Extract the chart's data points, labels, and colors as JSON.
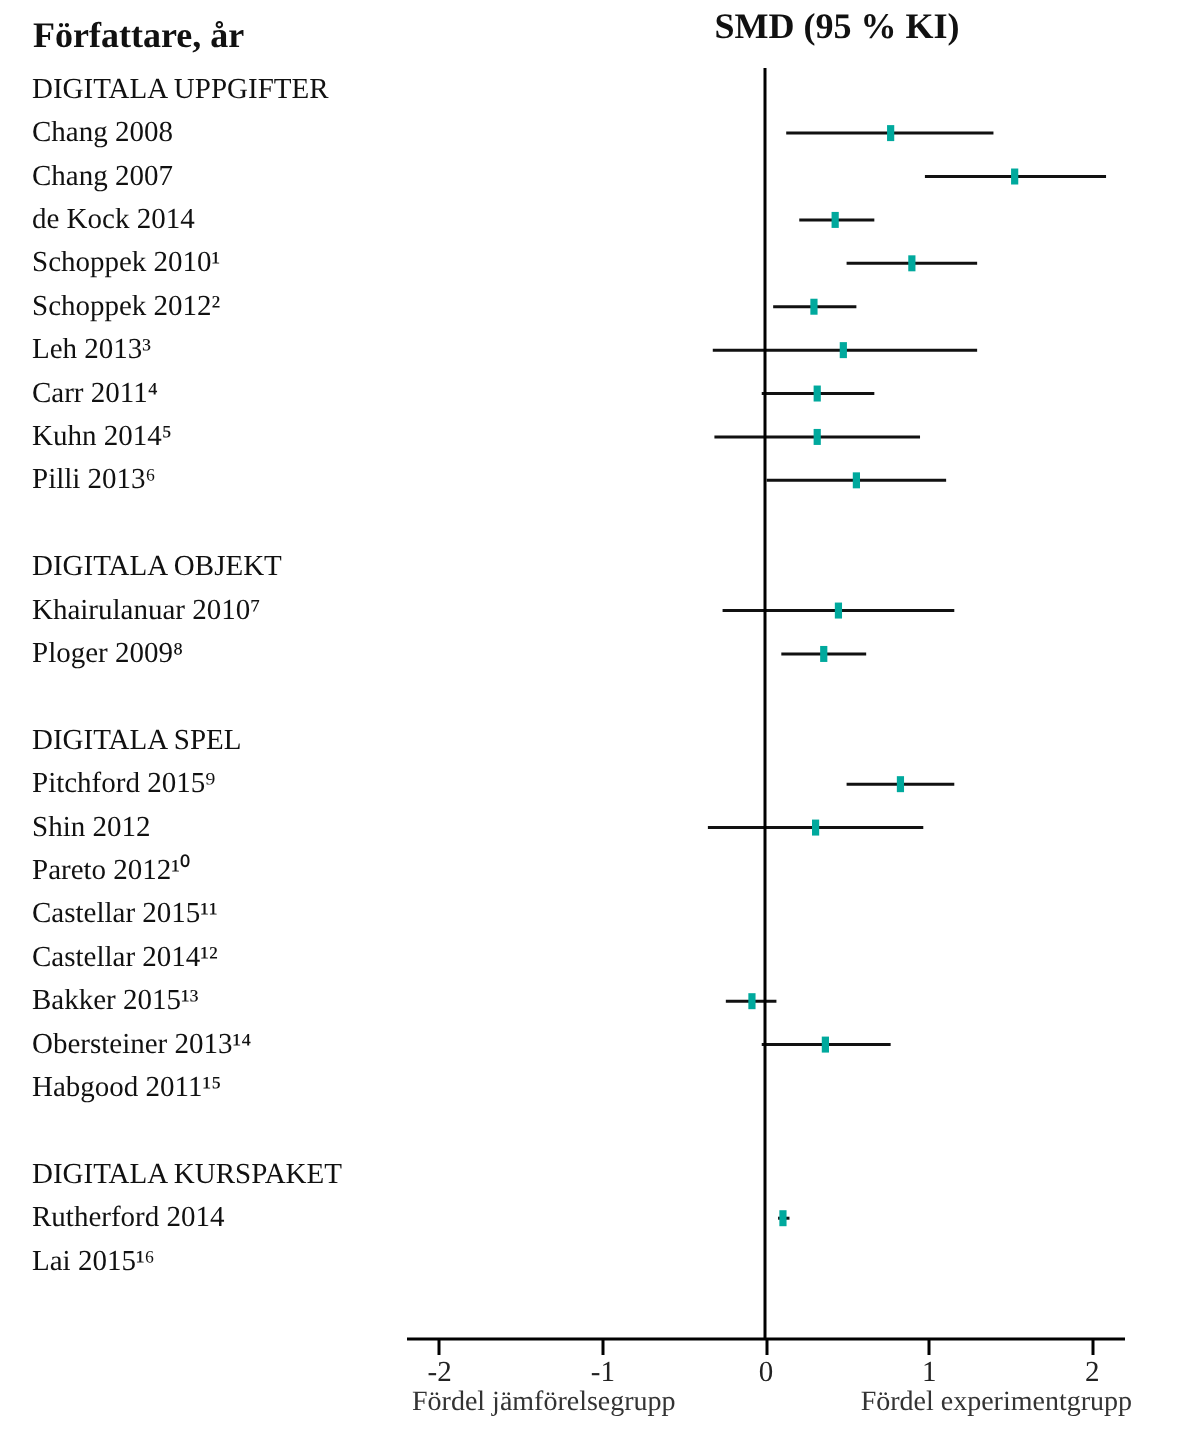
{
  "chart_data": {
    "type": "scatter",
    "title": "SMD (95 % KI)",
    "ylabel": "Författare, år",
    "annotations": [
      "Fördel jämförelsegrupp",
      "Fördel experimentgrupp"
    ],
    "orientation": "horizontal",
    "categories": [
      "DIGITALA UPPGIFTER",
      "Chang 2008",
      "Chang 2007",
      "de Kock 2014",
      "Schoppek 2010¹",
      "Schoppek 2012²",
      "Leh 2013³",
      "Carr 2011⁴",
      "Kuhn 2014⁵",
      "Pilli 2013⁶",
      null,
      "DIGITALA OBJEKT",
      "Khairulanuar 2010⁷",
      "Ploger 2009⁸",
      null,
      "DIGITALA SPEL",
      "Pitchford 2015⁹",
      "Shin 2012",
      "Pareto 2012¹⁰",
      "Castellar 2015¹¹",
      "Castellar 2014¹²",
      "Bakker 2015¹³",
      "Obersteiner 2013¹⁴",
      "Habgood 2011¹⁵",
      null,
      "DIGITALA KURSPAKET",
      "Rutherford 2014",
      "Lai 2015¹⁶"
    ],
    "values": [
      null,
      0.77,
      1.53,
      0.43,
      0.9,
      0.3,
      0.48,
      0.32,
      0.32,
      0.56,
      null,
      null,
      0.45,
      0.36,
      null,
      null,
      0.83,
      0.31,
      null,
      null,
      null,
      -0.08,
      0.37,
      null,
      null,
      null,
      0.11,
      null
    ],
    "errors": [
      null,
      [
        0.13,
        1.4
      ],
      [
        0.98,
        2.09
      ],
      [
        0.21,
        0.67
      ],
      [
        0.5,
        1.3
      ],
      [
        0.05,
        0.56
      ],
      [
        -0.32,
        1.3
      ],
      [
        -0.02,
        0.67
      ],
      [
        -0.31,
        0.95
      ],
      [
        0.01,
        1.11
      ],
      null,
      null,
      [
        -0.26,
        1.16
      ],
      [
        0.1,
        0.62
      ],
      null,
      null,
      [
        0.5,
        1.16
      ],
      [
        -0.35,
        0.97
      ],
      null,
      null,
      null,
      [
        -0.24,
        0.07
      ],
      [
        -0.02,
        0.77
      ],
      null,
      null,
      null,
      [
        0.08,
        0.15
      ],
      null
    ],
    "color": "#00a99d",
    "marker": "square",
    "xlim": [
      -2.2,
      2.2
    ],
    "xticks": [
      -2,
      -1,
      0,
      1,
      2
    ],
    "ref_lines": [
      {
        "axis": "x",
        "value": 0,
        "color": "#000000"
      }
    ]
  }
}
